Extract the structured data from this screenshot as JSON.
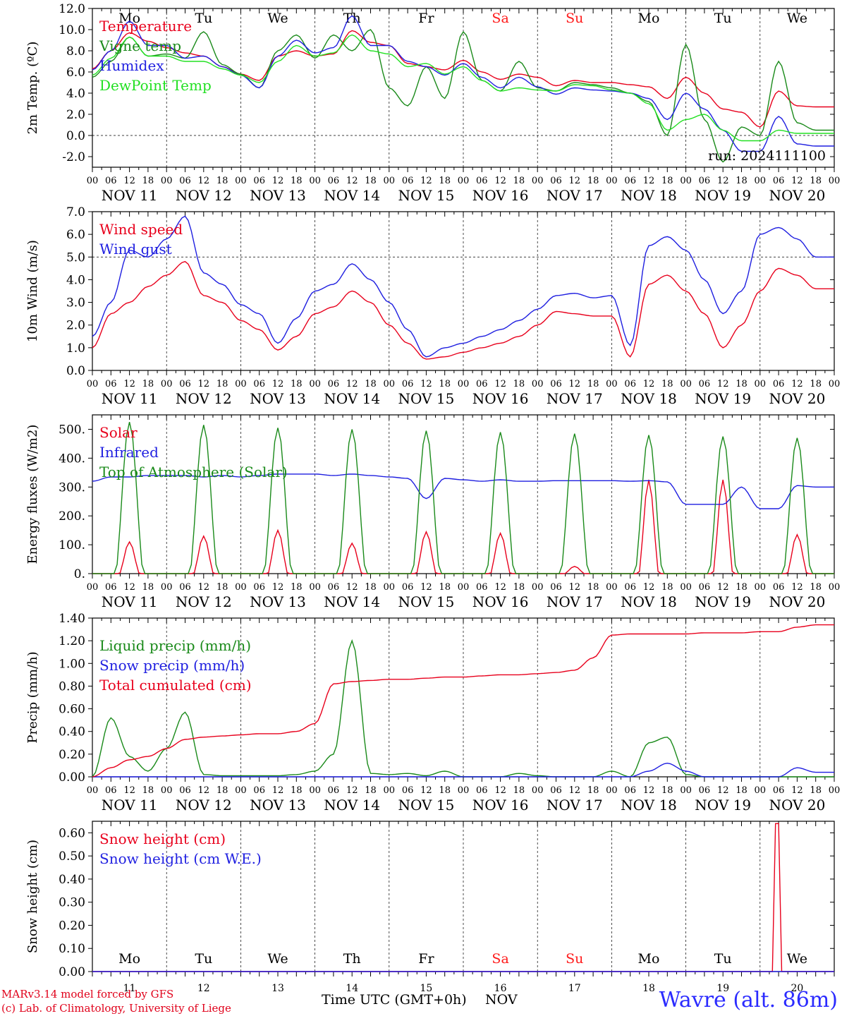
{
  "run_label": "run: 2024111100",
  "days": [
    {
      "dow": "Mo",
      "date": "NOV 11",
      "num": "11",
      "weekend": false
    },
    {
      "dow": "Tu",
      "date": "NOV 12",
      "num": "12",
      "weekend": false
    },
    {
      "dow": "We",
      "date": "NOV 13",
      "num": "13",
      "weekend": false
    },
    {
      "dow": "Th",
      "date": "NOV 14",
      "num": "14",
      "weekend": false
    },
    {
      "dow": "Fr",
      "date": "NOV 15",
      "num": "15",
      "weekend": false
    },
    {
      "dow": "Sa",
      "date": "NOV 16",
      "num": "16",
      "weekend": true
    },
    {
      "dow": "Su",
      "date": "NOV 17",
      "num": "17",
      "weekend": true
    },
    {
      "dow": "Mo",
      "date": "NOV 18",
      "num": "18",
      "weekend": false
    },
    {
      "dow": "Tu",
      "date": "NOV 19",
      "num": "19",
      "weekend": false
    },
    {
      "dow": "We",
      "date": "NOV 20",
      "num": "20",
      "weekend": false
    }
  ],
  "hour_ticks": [
    "00",
    "06",
    "12",
    "18"
  ],
  "colors": {
    "red": "#e8001c",
    "green": "#1a8a1a",
    "blue": "#1f1fe0",
    "lightgreen": "#22e022",
    "weekend": "#ff1a1a"
  },
  "footer": {
    "credit_line1": "MARv3.14 model forced by GFS",
    "credit_line2": "(c) Lab. of Climatology, University of Liege",
    "xlabel": "Time UTC (GMT+0h)",
    "xunit": "NOV",
    "station": "Wavre (alt. 86m)"
  },
  "chart_data": [
    {
      "type": "line",
      "ylabel": "2m Temp. (ºC)",
      "ylim": [
        -3,
        12
      ],
      "yticks": [
        -2,
        0,
        2,
        4,
        6,
        8,
        10,
        12
      ],
      "ytick_labels": [
        "-2.0",
        "0.0",
        "2.0",
        "4.0",
        "6.0",
        "8.0",
        "10.0",
        "12.0"
      ],
      "ref_line": 0,
      "x_hours_from_nov11_00": [
        0,
        6,
        12,
        18,
        24,
        30,
        36,
        42,
        48,
        54,
        60,
        66,
        72,
        78,
        84,
        90,
        96,
        102,
        108,
        114,
        120,
        126,
        132,
        138,
        144,
        150,
        156,
        162,
        168,
        174,
        180,
        186,
        192,
        198,
        204,
        210,
        216,
        222,
        228,
        234
      ],
      "series": [
        {
          "name": "Temperature",
          "color": "red",
          "values": [
            6.3,
            8.0,
            9.7,
            8.9,
            8.3,
            7.8,
            7.5,
            6.5,
            5.8,
            5.2,
            7.5,
            8.0,
            7.5,
            7.7,
            9.9,
            8.8,
            8.5,
            6.8,
            6.5,
            6.2,
            7.1,
            6.0,
            5.3,
            5.8,
            5.5,
            4.7,
            5.2,
            5.0,
            5.0,
            4.8,
            4.6,
            3.5,
            5.5,
            4.0,
            2.5,
            2.2,
            0.8,
            4.2,
            2.8,
            2.7
          ]
        },
        {
          "name": "Vigne temp",
          "color": "green",
          "values": [
            5.5,
            7.0,
            9.3,
            7.5,
            7.7,
            7.3,
            9.8,
            6.7,
            5.8,
            4.5,
            8.0,
            9.5,
            7.3,
            9.5,
            8.0,
            10.0,
            4.5,
            2.8,
            6.5,
            3.5,
            9.8,
            5.2,
            4.2,
            7.0,
            4.5,
            4.2,
            5.0,
            4.8,
            4.5,
            4.0,
            3.2,
            0.0,
            8.6,
            1.5,
            -2.5,
            0.8,
            0.0,
            7.0,
            1.2,
            0.5
          ]
        },
        {
          "name": "Humidex",
          "color": "blue",
          "values": [
            6.2,
            8.0,
            10.8,
            8.5,
            8.5,
            7.3,
            7.5,
            6.5,
            5.7,
            4.5,
            7.5,
            9.0,
            7.8,
            8.3,
            11.3,
            8.5,
            8.5,
            7.0,
            6.5,
            5.7,
            6.8,
            5.5,
            4.5,
            5.5,
            4.6,
            3.9,
            4.5,
            4.3,
            4.2,
            4.0,
            3.5,
            1.5,
            4.0,
            2.5,
            0.5,
            -1.5,
            -1.5,
            1.8,
            -0.8,
            -1.0
          ]
        },
        {
          "name": "DewPoint Temp",
          "color": "lightgreen",
          "values": [
            5.7,
            7.3,
            9.3,
            7.5,
            7.5,
            7.0,
            7.0,
            6.3,
            5.7,
            5.0,
            7.0,
            8.5,
            7.5,
            7.8,
            9.5,
            8.0,
            7.7,
            6.5,
            6.8,
            5.8,
            6.5,
            5.2,
            4.2,
            4.5,
            4.3,
            4.2,
            4.8,
            4.7,
            4.3,
            4.0,
            3.0,
            0.5,
            1.5,
            2.0,
            0.5,
            -0.5,
            -0.5,
            0.5,
            0.2,
            0.2
          ]
        }
      ],
      "legend": [
        "Temperature",
        "Vigne temp",
        "Humidex",
        "DewPoint Temp"
      ],
      "legend_position": "left"
    },
    {
      "type": "line",
      "ylabel": "10m Wind (m/s)",
      "ylim": [
        0,
        7
      ],
      "yticks": [
        0,
        1,
        2,
        3,
        4,
        5,
        6,
        7
      ],
      "ytick_labels": [
        "0.0",
        "1.0",
        "2.0",
        "3.0",
        "4.0",
        "5.0",
        "6.0",
        "7.0"
      ],
      "ref_line": 5,
      "x_hours_from_nov11_00": [
        0,
        6,
        12,
        18,
        24,
        30,
        36,
        42,
        48,
        54,
        60,
        66,
        72,
        78,
        84,
        90,
        96,
        102,
        108,
        114,
        120,
        126,
        132,
        138,
        144,
        150,
        156,
        162,
        168,
        174,
        180,
        186,
        192,
        198,
        204,
        210,
        216,
        222,
        228,
        234
      ],
      "series": [
        {
          "name": "Wind speed",
          "color": "red",
          "values": [
            1.0,
            2.5,
            3.0,
            3.7,
            4.2,
            4.8,
            3.3,
            3.0,
            2.2,
            1.8,
            0.9,
            1.5,
            2.5,
            2.8,
            3.5,
            3.0,
            2.0,
            1.2,
            0.5,
            0.6,
            0.8,
            1.0,
            1.2,
            1.5,
            2.0,
            2.6,
            2.5,
            2.4,
            2.4,
            0.6,
            3.8,
            4.2,
            3.5,
            2.5,
            1.0,
            2.0,
            3.5,
            4.5,
            4.2,
            3.6
          ]
        },
        {
          "name": "Wind gust",
          "color": "blue",
          "values": [
            1.5,
            3.0,
            5.3,
            5.0,
            5.8,
            6.8,
            4.3,
            3.8,
            2.9,
            2.5,
            1.2,
            2.3,
            3.5,
            3.8,
            4.7,
            4.0,
            3.0,
            1.8,
            0.6,
            1.0,
            1.2,
            1.5,
            1.8,
            2.2,
            2.7,
            3.3,
            3.4,
            3.2,
            3.3,
            1.1,
            5.5,
            5.9,
            5.3,
            4.0,
            2.5,
            3.5,
            6.0,
            6.3,
            5.8,
            5.0
          ]
        }
      ],
      "legend": [
        "Wind speed",
        "Wind gust"
      ],
      "legend_position": "left"
    },
    {
      "type": "line",
      "ylabel": "Energy fluxes (W/m2)",
      "ylim": [
        0,
        550
      ],
      "yticks": [
        0,
        100,
        200,
        300,
        400,
        500
      ],
      "ytick_labels": [
        "0.",
        "100.",
        "200.",
        "300.",
        "400.",
        "500."
      ],
      "x_hours_from_nov11_00": [
        0,
        6,
        12,
        18,
        24,
        30,
        36,
        42,
        48,
        54,
        60,
        66,
        72,
        78,
        84,
        90,
        96,
        102,
        108,
        114,
        120,
        126,
        132,
        138,
        144,
        150,
        156,
        162,
        168,
        174,
        180,
        186,
        192,
        198,
        204,
        210,
        216,
        222,
        228,
        234
      ],
      "series": [
        {
          "name": "Solar",
          "color": "red",
          "peaks": [
            110,
            130,
            150,
            105,
            145,
            140,
            25,
            325,
            325,
            135
          ]
        },
        {
          "name": "Infrared",
          "color": "blue",
          "values": [
            320,
            335,
            335,
            340,
            340,
            340,
            335,
            340,
            335,
            340,
            345,
            345,
            345,
            340,
            345,
            340,
            335,
            330,
            260,
            330,
            325,
            320,
            325,
            320,
            320,
            322,
            322,
            322,
            322,
            320,
            322,
            318,
            240,
            240,
            240,
            300,
            225,
            225,
            305,
            300
          ]
        },
        {
          "name": "Top of Atmosphere (Solar)",
          "color": "green",
          "peaks": [
            525,
            515,
            505,
            500,
            495,
            490,
            485,
            480,
            475,
            470
          ]
        }
      ],
      "legend": [
        "Solar",
        "Infrared",
        "Top of Atmosphere (Solar)"
      ],
      "legend_position": "left"
    },
    {
      "type": "line",
      "ylabel": "Precip (mm/h)",
      "ylim": [
        0,
        1.4
      ],
      "yticks": [
        0,
        0.2,
        0.4,
        0.6,
        0.8,
        1.0,
        1.2,
        1.4
      ],
      "ytick_labels": [
        "0.00",
        "0.20",
        "0.40",
        "0.60",
        "0.80",
        "1.00",
        "1.20",
        "1.40"
      ],
      "x_hours_from_nov11_00": [
        0,
        6,
        12,
        18,
        24,
        30,
        36,
        42,
        48,
        54,
        60,
        66,
        72,
        78,
        84,
        90,
        96,
        102,
        108,
        114,
        120,
        126,
        132,
        138,
        144,
        150,
        156,
        162,
        168,
        174,
        180,
        186,
        192,
        198,
        204,
        210,
        216,
        222,
        228,
        234
      ],
      "series": [
        {
          "name": "Liquid precip (mm/h)",
          "color": "green",
          "values": [
            0.0,
            0.52,
            0.18,
            0.05,
            0.25,
            0.57,
            0.02,
            0.01,
            0.01,
            0.01,
            0.01,
            0.02,
            0.05,
            0.2,
            1.2,
            0.03,
            0.02,
            0.03,
            0.01,
            0.05,
            0.0,
            0.0,
            0.0,
            0.03,
            0.01,
            0.0,
            0.0,
            0.0,
            0.05,
            0.0,
            0.3,
            0.35,
            0.02,
            0.0,
            0.0,
            0.0,
            0.0,
            0.0,
            0.0,
            0.0
          ]
        },
        {
          "name": "Snow precip (mm/h)",
          "color": "blue",
          "values": [
            0.0,
            0.0,
            0.0,
            0.0,
            0.0,
            0.0,
            0.0,
            0.0,
            0.0,
            0.0,
            0.0,
            0.0,
            0.0,
            0.0,
            0.0,
            0.0,
            0.0,
            0.0,
            0.0,
            0.0,
            0.0,
            0.0,
            0.0,
            0.0,
            0.0,
            0.0,
            0.0,
            0.0,
            0.0,
            0.0,
            0.05,
            0.12,
            0.05,
            0.0,
            0.0,
            0.0,
            0.0,
            0.0,
            0.08,
            0.04
          ]
        },
        {
          "name": "Total cumulated (cm)",
          "color": "red",
          "values": [
            0.0,
            0.08,
            0.15,
            0.18,
            0.25,
            0.33,
            0.35,
            0.36,
            0.37,
            0.38,
            0.38,
            0.4,
            0.47,
            0.82,
            0.84,
            0.85,
            0.86,
            0.86,
            0.87,
            0.88,
            0.88,
            0.89,
            0.9,
            0.9,
            0.91,
            0.92,
            0.94,
            1.05,
            1.25,
            1.26,
            1.26,
            1.26,
            1.26,
            1.27,
            1.27,
            1.27,
            1.28,
            1.28,
            1.32,
            1.34
          ]
        }
      ],
      "legend": [
        "Liquid precip (mm/h)",
        "Snow precip (mm/h)",
        "Total cumulated (cm)"
      ],
      "legend_position": "left"
    },
    {
      "type": "line",
      "ylabel": "Snow height (cm)",
      "ylim": [
        0,
        0.65
      ],
      "yticks": [
        0,
        0.1,
        0.2,
        0.3,
        0.4,
        0.5,
        0.6
      ],
      "ytick_labels": [
        "0.00",
        "0.10",
        "0.20",
        "0.30",
        "0.40",
        "0.50",
        "0.60"
      ],
      "series": [
        {
          "name": "Snow height (cm)",
          "color": "red",
          "x_hours_from_nov11_00": [
            0,
            220,
            221,
            222,
            223,
            240
          ],
          "values": [
            0,
            0,
            0.64,
            0.64,
            0,
            0
          ]
        },
        {
          "name": "Snow height (cm W.E.)",
          "color": "blue",
          "x_hours_from_nov11_00": [
            0,
            240
          ],
          "values": [
            0,
            0
          ]
        }
      ],
      "legend": [
        "Snow height (cm)",
        "Snow height (cm W.E.)"
      ],
      "legend_position": "left"
    }
  ]
}
